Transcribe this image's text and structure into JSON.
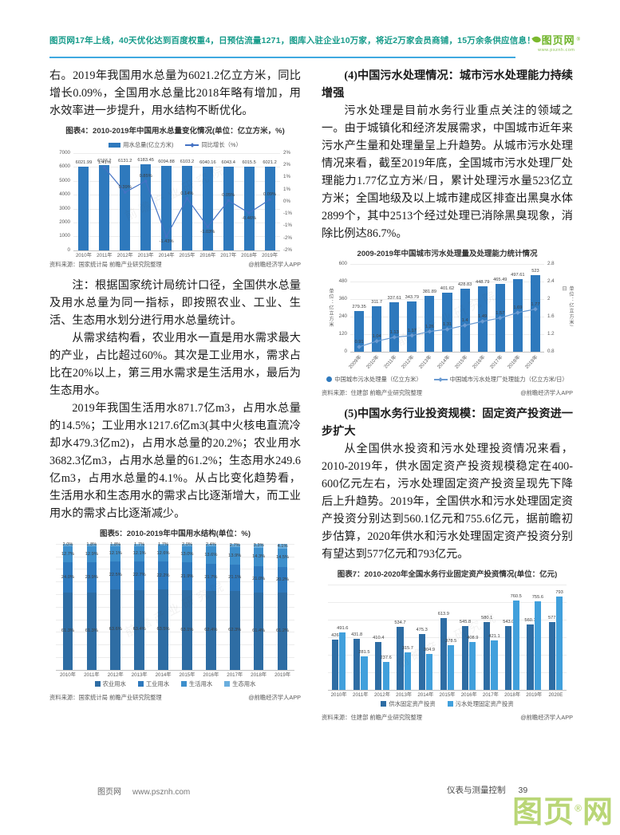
{
  "banner": {
    "text": "图页网17年上线，40天优化达到百度权重4，日预估流量1271，图库入驻企业10万家，将近2万家会员商铺，15万余条供应信息！",
    "logo_text": "图页网",
    "logo_reg": "®",
    "logo_url": "www.psznh.com",
    "text_color": "#169b8a",
    "underline_color": "#3fa9e0",
    "logo_color": "#6fb42a"
  },
  "left_column": {
    "para1": "右。2019年我国用水总量为6021.2亿立方米，同比增长0.09%，全国用水总量比2018年略有增加，用水效率进一步提升，用水结构不断优化。",
    "note": "注：根据国家统计局统计口径，全国供水总量及用水总量为同一指标，即按照农业、工业、生活、生态用水划分进行用水总量统计。",
    "para2": "从需求结构看，农业用水一直是用水需求最大的产业，占比超过60%。其次是工业用水，需求占比在20%以上，第三用水需求是生活用水，最后为生态用水。",
    "para3": "2019年我国生活用水871.7亿m3，占用水总量的14.5%；工业用水1217.6亿m3(其中火核电直流冷却水479.3亿m2)，占用水总量的20.2%；农业用水3682.3亿m3，占用水总量的61.2%；生态用水249.6亿m3，占用水总量的4.1%。从占比变化趋势看，生活用水和生态用水的需求占比逐渐增大，而工业用水的需求占比逐渐减少。"
  },
  "right_column": {
    "heading4": "(4)中国污水处理情况：城市污水处理能力持续增强",
    "para4": "污水处理是目前水务行业重点关注的领域之一。由于城镇化和经济发展需求，中国城市近年来污水产生量和处理量呈上升趋势。从城市污水处理情况来看，截至2019年底，全国城市污水处理厂处理能力1.77亿立方米/日，累计处理污水量523亿立方米；全国地级及以上城市建成区排查出黑臭水体2899个，其中2513个经过处理已消除黑臭现象，消除比例达86.7%。",
    "heading5": "(5)中国水务行业投资规模：固定资产投资进一步扩大",
    "para5": "从全国供水投资和污水处理投资情况来看，2010-2019年，供水固定资产投资规模稳定在400-600亿元左右，污水处理固定资产投资呈现先下降后上升趋势。2019年，全国供水和污水处理固定资产投资分别达到560.1亿元和755.6亿元，据前瞻初步估算，2020年供水和污水处理固定资产投资分别有望达到577亿元和793亿元。"
  },
  "footer": {
    "site": "图页网",
    "url": "www.psznh.com",
    "journal": "仪表与测量控制",
    "page": "39",
    "watermark_a": "图页",
    "watermark_reg": "®",
    "watermark_b": "网"
  },
  "misc": {
    "figure_watermark": "前瞻产业研究院"
  },
  "chart_data": [
    {
      "id": "water-usage-total",
      "type": "bar+line",
      "title": "图表4：2010-2019年中国用水总量变化情况(单位：亿立方米，%)",
      "legend": "top",
      "neg_below": true,
      "plot": {
        "h": 122,
        "pl": 30,
        "pr": 26,
        "bw": 0.5
      },
      "categories": [
        "2010年",
        "2011年",
        "2012年",
        "2013年",
        "2014年",
        "2015年",
        "2016年",
        "2017年",
        "2018年",
        "2019年"
      ],
      "series": [
        {
          "name": "用水总量(亿立方米)",
          "chart": "bar",
          "legend_marker": "bar",
          "color": "#2e79bd",
          "values": [
            6021.99,
            6107.2,
            6131.2,
            6183.45,
            6094.88,
            6103.2,
            6040.16,
            6043.4,
            6015.5,
            6021.2
          ],
          "labels": [
            "6021.99",
            "6107.2",
            "6131.2",
            "6183.45",
            "6094.88",
            "6103.2",
            "6040.16",
            "6043.4",
            "6015.5",
            "6021.2"
          ]
        },
        {
          "name": "同比增长（%）",
          "chart": "line",
          "legend_marker": "line",
          "marker": "square",
          "color": "#4472c4",
          "values": [
            null,
            1.41,
            0.39,
            0.85,
            -1.43,
            0.14,
            -1.03,
            0.05,
            -0.46,
            0.09
          ],
          "labels": [
            "",
            "1.41%",
            "0.39%",
            "0.85%",
            "-1.43%",
            "0.14%",
            "-1.03%",
            "0.05%",
            "-0.46%",
            "0.09%"
          ]
        }
      ],
      "left_axis": {
        "min": 0,
        "max": 7000,
        "step": 1000,
        "show_labels": true
      },
      "right_axis": {
        "min": -2,
        "max": 2,
        "labels": [
          "2%",
          "2%",
          "1%",
          "1%",
          "0%",
          "-1%",
          "-1%",
          "-2%",
          "-2%"
        ]
      },
      "source_left": "资料来源：国家统计局 前瞻产业研究院整理",
      "source_right": "@前瞻经济学人APP"
    },
    {
      "id": "sewage-treatment",
      "type": "bar+line",
      "title": "2009-2019年中国城市污水处理量及处理能力统计情况",
      "legend": "bottom",
      "x_rotate": true,
      "plot": {
        "h": 110,
        "pl": 36,
        "pr": 36,
        "bw": 0.55
      },
      "categories": [
        "2009年",
        "2010年",
        "2011年",
        "2012年",
        "2013年",
        "2014年",
        "2015年",
        "2016年",
        "2017年",
        "2018年",
        "2019年"
      ],
      "series": [
        {
          "name": "中国城市污水处理量（亿立方米）",
          "chart": "bar",
          "legend_marker": "circle",
          "color": "#2e79bd",
          "values": [
            279.35,
            311.7,
            337.61,
            343.79,
            381.89,
            401.62,
            428.83,
            448.79,
            465.49,
            497.61,
            523
          ],
          "labels": [
            "279.35",
            "311.7",
            "337.61",
            "343.79",
            "381.89",
            "401.62",
            "428.83",
            "448.79",
            "465.49",
            "497.61",
            "523"
          ]
        },
        {
          "name": "中国城市污水处理厂处理能力（亿立方米/日）",
          "chart": "line",
          "legend_marker": "line",
          "marker": "diamond",
          "color": "#6b9bd2",
          "values": [
            0.91,
            1.04,
            1.13,
            1.17,
            1.26,
            1.31,
            1.4,
            1.49,
            1.57,
            1.69,
            1.77
          ],
          "labels": [
            "0.91",
            "1.04",
            "1.13",
            "1.17",
            "1.26",
            "1.31",
            "1.4",
            "1.49",
            "1.57",
            "1.69",
            "1.77"
          ]
        }
      ],
      "left_axis": {
        "min": 0,
        "max": 600,
        "step": 120,
        "show_labels": true,
        "title": "单位：亿立方米"
      },
      "right_axis": {
        "min": 0.8,
        "max": 2.8,
        "labels": [
          "2.8",
          "2.4",
          "2",
          "1.6",
          "1.2",
          "0.8"
        ],
        "title": "单位：亿立方米/日"
      },
      "source_left": "资料来源：住建部 前瞻产业研究院整理",
      "source_right": "@前瞻经济学人APP"
    },
    {
      "id": "water-usage-structure",
      "type": "stacked-bar",
      "title": "图表5：2010-2019年中国用水结构(单位：%)",
      "legend": "bottom",
      "plot": {
        "h": 158,
        "pl": 8,
        "pr": 8,
        "bw": 0.42
      },
      "categories": [
        "2010年",
        "2011年",
        "2012年",
        "2013年",
        "2014年",
        "2015年",
        "2016年",
        "2017年",
        "2018年",
        "2019年"
      ],
      "series": [
        {
          "name": "农业用水",
          "legend_marker": "square",
          "color": "#2e6da4",
          "values": [
            61.3,
            61.3,
            63.6,
            63.4,
            63.5,
            63.1,
            62.4,
            62.3,
            61.4,
            61.2
          ],
          "labels": [
            "61.3%",
            "61.3%",
            "63.6%",
            "63.4%",
            "63.5%",
            "63.1%",
            "62.4%",
            "62.3%",
            "61.4%",
            "61.2%"
          ]
        },
        {
          "name": "工业用水",
          "legend_marker": "square",
          "color": "#2e79bd",
          "values": [
            24.0,
            23.9,
            22.5,
            22.7,
            22.2,
            21.9,
            21.7,
            21.1,
            21.0,
            20.2
          ],
          "labels": [
            "24.0%",
            "23.9%",
            "22.5%",
            "22.7%",
            "22.2%",
            "21.9%",
            "21.7%",
            "21.1%",
            "21.0%",
            "20.2%"
          ]
        },
        {
          "name": "生活用水",
          "legend_marker": "square",
          "color": "#3d8fcc",
          "values": [
            12.7,
            12.9,
            12.1,
            12.1,
            12.6,
            13.0,
            13.6,
            13.9,
            14.3,
            14.5
          ],
          "labels": [
            "12.7%",
            "12.9%",
            "12.1%",
            "12.1%",
            "12.6%",
            "13.0%",
            "13.6%",
            "13.9%",
            "14.3%",
            "14.5%"
          ]
        },
        {
          "name": "生态用水",
          "legend_marker": "square",
          "color": "#6aaede",
          "values": [
            2.0,
            1.8,
            1.8,
            1.7,
            1.7,
            2.0,
            2.4,
            2.7,
            3.3,
            4.1
          ],
          "labels": [
            "2.0%",
            "1.8%",
            "1.8%",
            "1.7%",
            "1.7%",
            "2.0%",
            "2.4%",
            "2.7%",
            "3.3%",
            "4.1%"
          ]
        }
      ],
      "left_axis": {
        "min": 0,
        "max": 100,
        "step": 10,
        "show_labels": false
      },
      "source_left": "资料来源：国家统计局 前瞻产业研究院整理",
      "source_right": "@前瞻经济学人APP"
    },
    {
      "id": "water-investment",
      "type": "grouped-bar",
      "title": "图表7：2010-2020年全国水务行业固定资产投资情况(单位：亿元)",
      "legend": "bottom",
      "plot": {
        "h": 132,
        "pl": 8,
        "pr": 8,
        "bw": 0.3
      },
      "categories": [
        "2010年",
        "2011年",
        "2012年",
        "2013年",
        "2014年",
        "2015年",
        "2016年",
        "2017年",
        "2018年",
        "2019年",
        "2020E"
      ],
      "series": [
        {
          "name": "供水固定资产投资",
          "legend_marker": "square",
          "color": "#2e6da4",
          "values": [
            426,
            431.8,
            410.4,
            534.7,
            475.3,
            613.9,
            545.8,
            580.1,
            543.0,
            560.1,
            577
          ],
          "labels": [
            "426",
            "431.8",
            "410.4",
            "534.7",
            "475.3",
            "613.9",
            "545.8",
            "580.1",
            "543.0",
            "560.1",
            "577"
          ]
        },
        {
          "name": "污水处理固定资产投资",
          "legend_marker": "square",
          "color": "#41a0dc",
          "values": [
            491.6,
            281.5,
            237.6,
            315.7,
            304.9,
            378.5,
            408.9,
            421.1,
            760.5,
            755.6,
            793
          ],
          "labels": [
            "491.6",
            "281.5",
            "237.6",
            "315.7",
            "304.9",
            "378.5",
            "408.9",
            "421.1",
            "760.5",
            "755.6",
            "793"
          ]
        }
      ],
      "left_axis": {
        "min": 0,
        "max": 900,
        "step": 150,
        "show_labels": false
      },
      "source_left": "资料来源：住建部 前瞻产业研究院整理",
      "source_right": "@前瞻经济学人APP"
    }
  ]
}
